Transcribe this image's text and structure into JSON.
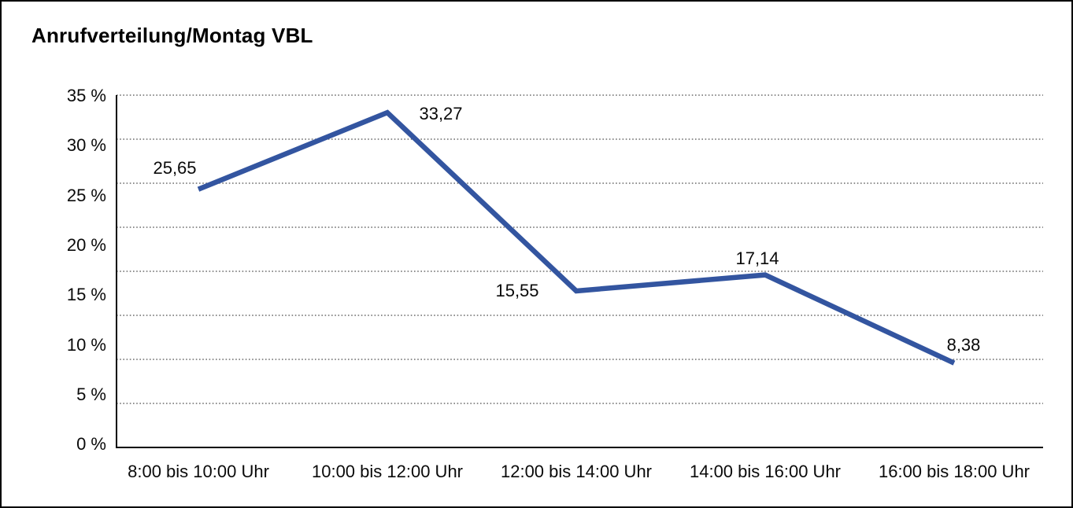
{
  "title": "Anrufverteilung/Montag VBL",
  "colors": {
    "line": "#3355a0",
    "grid_dots": "#4d4d4d",
    "axis": "#000000",
    "border": "#000000",
    "background": "#ffffff",
    "text": "#0a0a0a"
  },
  "chart_data": {
    "type": "line",
    "title": "Anrufverteilung/Montag VBL",
    "categories": [
      "8:00 bis 10:00 Uhr",
      "10:00 bis 12:00 Uhr",
      "12:00 bis 14:00 Uhr",
      "14:00 bis 16:00 Uhr",
      "16:00 bis 18:00 Uhr"
    ],
    "values": [
      25.65,
      33.27,
      15.55,
      17.14,
      8.38
    ],
    "value_labels": [
      "25,65",
      "33,27",
      "15,55",
      "17,14",
      "8,38"
    ],
    "y_ticks": [
      "35 %",
      "30 %",
      "25 %",
      "20 %",
      "15 %",
      "10 %",
      "5 %",
      "0 %"
    ],
    "ylim": [
      0,
      35
    ],
    "xlabel": "",
    "ylabel": "",
    "grid": "horizontal-dotted",
    "legend_position": "none",
    "series_color": "#3355a0"
  }
}
